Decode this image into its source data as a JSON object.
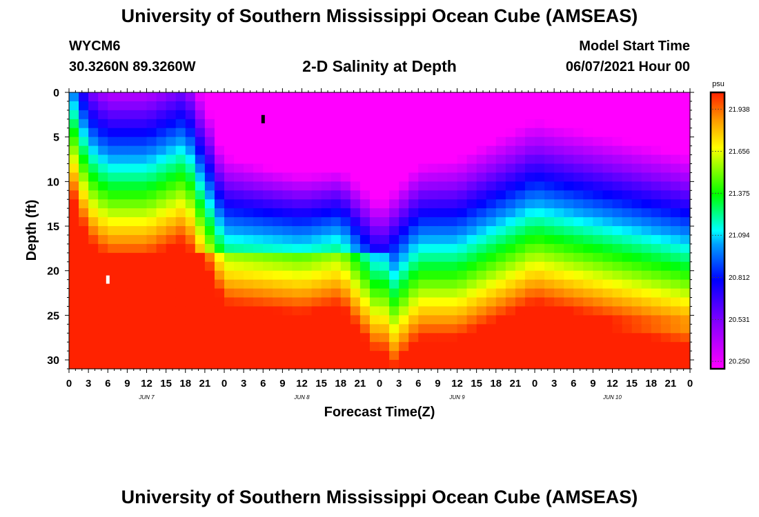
{
  "header": {
    "title": "University of Southern Mississippi Ocean Cube (AMSEAS)",
    "station_id": "WYCM6",
    "coordinates": "30.3260N  89.3260W",
    "plot_title": "2-D Salinity at Depth",
    "model_start_label": "Model Start Time",
    "model_start_value": "06/07/2021 Hour 00"
  },
  "footer": {
    "title": "University of Southern Mississippi Ocean Cube (AMSEAS)"
  },
  "chart_data": {
    "type": "heatmap",
    "title": "2-D Salinity at Depth",
    "xlabel": "Forecast Time(Z)",
    "ylabel": "Depth (ft)",
    "x_tick_labels": [
      "0",
      "3",
      "6",
      "9",
      "12",
      "15",
      "18",
      "21",
      "0",
      "3",
      "6",
      "9",
      "12",
      "15",
      "18",
      "21",
      "0",
      "3",
      "6",
      "9",
      "12",
      "15",
      "18",
      "21",
      "0",
      "3",
      "6",
      "9",
      "12",
      "15",
      "18",
      "21",
      "0"
    ],
    "date_labels": [
      "JUN 7",
      "JUN 8",
      "JUN 9",
      "JUN 10"
    ],
    "y_ticks": [
      0,
      5,
      10,
      15,
      20,
      25,
      30
    ],
    "xlim": [
      0,
      96
    ],
    "ylim": [
      0,
      31
    ],
    "colorbar": {
      "unit": "psu",
      "ticks": [
        21.938,
        21.656,
        21.375,
        21.094,
        20.812,
        20.531,
        20.25
      ],
      "tick_labels": [
        "21.938",
        "21.656",
        "21.375",
        "21.094",
        "20.812",
        "20.531",
        "20.250"
      ],
      "range": [
        20.2,
        22.05
      ]
    },
    "markers": [
      {
        "name": "min-marker",
        "time_h": 30,
        "depth_ft": 3,
        "color": "#000000"
      },
      {
        "name": "max-marker",
        "time_h": 6,
        "depth_ft": 21,
        "color": "#ffffff"
      }
    ],
    "field_description": {
      "time_hours": [
        0,
        3,
        6,
        12,
        18,
        24,
        36,
        42,
        48,
        54,
        60,
        72,
        78,
        84,
        90,
        96
      ],
      "isohaline_21_094_depth_ft": [
        0,
        6,
        8,
        8,
        6,
        16,
        17,
        16,
        22,
        17,
        17,
        13,
        14,
        15,
        16,
        17
      ]
    }
  }
}
